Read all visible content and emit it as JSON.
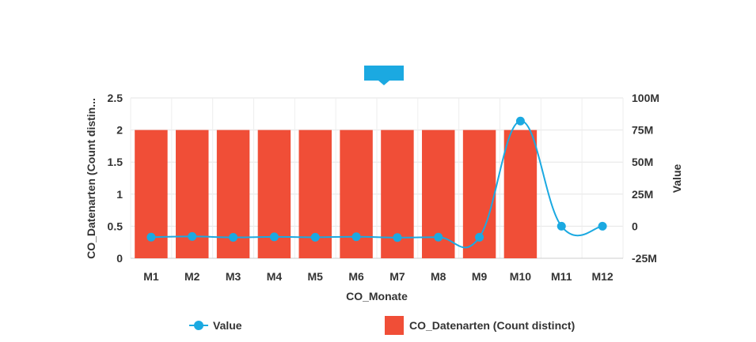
{
  "chart_data": {
    "type": "bar",
    "categories": [
      "M1",
      "M2",
      "M3",
      "M4",
      "M5",
      "M6",
      "M7",
      "M8",
      "M9",
      "M10",
      "M11",
      "M12"
    ],
    "series": [
      {
        "name": "CO_Datenarten (Count distinct)",
        "type": "bar",
        "axis": "left",
        "color": "#f04e37",
        "values": [
          2,
          2,
          2,
          2,
          2,
          2,
          2,
          2,
          2,
          2,
          null,
          null
        ]
      },
      {
        "name": "Value",
        "type": "line",
        "axis": "right",
        "color": "#1ba9e1",
        "values": [
          -8500000,
          -8000000,
          -8700000,
          -8300000,
          -8600000,
          -8200000,
          -8800000,
          -8500000,
          -8600000,
          82000000,
          0,
          0
        ]
      }
    ],
    "xlabel": "CO_Monate",
    "ylabel_left": "CO_Datenarten (Count distin...",
    "ylabel_right": "Value",
    "ylim_left": [
      0,
      2.5
    ],
    "ylim_right": [
      -25000000,
      100000000
    ],
    "yticks_left": [
      "0",
      "0.5",
      "1",
      "1.5",
      "2",
      "2.5"
    ],
    "yticks_right": [
      "-25M",
      "0",
      "25M",
      "50M",
      "75M",
      "100M"
    ],
    "grid": true,
    "legend_position": "bottom"
  }
}
